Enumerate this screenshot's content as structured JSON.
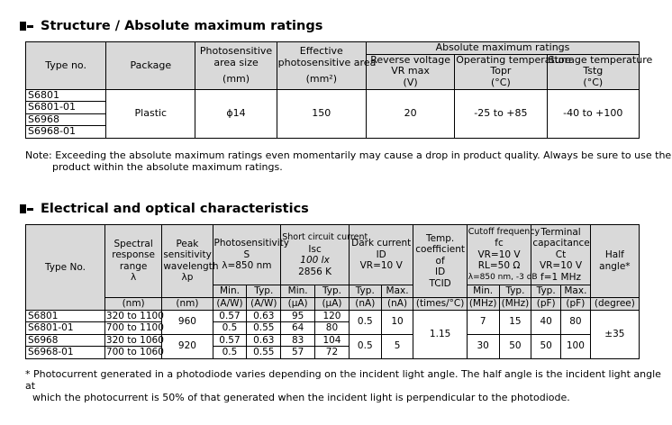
{
  "s1": {
    "title": "Structure / Absolute maximum ratings",
    "headers": {
      "type_no": "Type no.",
      "package": "Package",
      "area_l1": "Photosensitive",
      "area_l2": "area size",
      "area_unit": "(mm)",
      "eff_l1": "Effective",
      "eff_l2": "photosensitive area",
      "eff_unit": "(mm²)",
      "abs_max": "Absolute maximum ratings",
      "rev_l1": "Reverse voltage",
      "rev_l2": "VR max",
      "rev_unit": "(V)",
      "op_l1": "Operating temperature",
      "op_l2": "Topr",
      "op_unit": "(°C)",
      "st_l1": "Storage temperature",
      "st_l2": "Tstg",
      "st_unit": "(°C)"
    },
    "types": [
      "S6801",
      "S6801-01",
      "S6968",
      "S6968-01"
    ],
    "package": "Plastic",
    "area": "ϕ14",
    "effective_area": "150",
    "reverse_voltage": "20",
    "operating_temp": "-25 to +85",
    "storage_temp": "-40 to +100",
    "note_l1": "Note: Exceeding the absolute maximum ratings even momentarily may cause a drop in product quality. Always be sure to use the",
    "note_l2": "product within the absolute maximum ratings."
  },
  "s2": {
    "title": "Electrical and optical characteristics",
    "headers": {
      "type_no": "Type No.",
      "spec_l1": "Spectral",
      "spec_l2": "response",
      "spec_l3": "range",
      "spec_l4": "λ",
      "spec_unit": "(nm)",
      "peak_l1": "Peak",
      "peak_l2": "sensitivity",
      "peak_l3": "wavelength",
      "peak_l4": "λp",
      "peak_unit": "(nm)",
      "ps_l1": "Photosensitivity",
      "ps_l2": "S",
      "ps_l3": "λ=850 nm",
      "sc_l1": "Short circuit current",
      "sc_l2": "Isc",
      "sc_l3": "100 lx",
      "sc_l4": "2856 K",
      "dark_l1": "Dark current",
      "dark_l2": "ID",
      "dark_l3": "VR=10 V",
      "temp_l1": "Temp.",
      "temp_l2": "coefficient",
      "temp_l3": "of",
      "temp_l4": "ID",
      "temp_l5": "TCID",
      "temp_unit": "(times/°C)",
      "cut_l1": "Cutoff frequency",
      "cut_l2": "fc",
      "cut_l3": "VR=10 V",
      "cut_l4": "RL=50 Ω",
      "cut_l5": "λ=850 nm, -3 dB",
      "term_l1": "Terminal",
      "term_l2": "capacitance",
      "term_l3": "Ct",
      "term_l4": "VR=10 V",
      "term_l5": "f=1 MHz",
      "half_l1": "Half",
      "half_l2": "angle*",
      "half_unit": "(degree)",
      "min": "Min.",
      "typ": "Typ.",
      "max": "Max.",
      "u_aw": "(A/W)",
      "u_ua": "(μA)",
      "u_na": "(nA)",
      "u_mhz": "(MHz)",
      "u_pf": "(pF)"
    },
    "rows": [
      {
        "type": "S6801",
        "range": "320 to 1100",
        "ps_min": "0.57",
        "ps_typ": "0.63",
        "sc_min": "95",
        "sc_typ": "120"
      },
      {
        "type": "S6801-01",
        "range": "700 to 1100",
        "ps_min": "0.5",
        "ps_typ": "0.55",
        "sc_min": "64",
        "sc_typ": "80"
      },
      {
        "type": "S6968",
        "range": "320 to 1060",
        "ps_min": "0.57",
        "ps_typ": "0.63",
        "sc_min": "83",
        "sc_typ": "104"
      },
      {
        "type": "S6968-01",
        "range": "700 to 1060",
        "ps_min": "0.5",
        "ps_typ": "0.55",
        "sc_min": "57",
        "sc_typ": "72"
      }
    ],
    "groups": [
      {
        "peak": "960",
        "dark_typ": "0.5",
        "dark_max": "10",
        "cut_min": "7",
        "cut_typ": "15",
        "ct_typ": "40",
        "ct_max": "80"
      },
      {
        "peak": "920",
        "dark_typ": "0.5",
        "dark_max": "5",
        "cut_min": "30",
        "cut_typ": "50",
        "ct_typ": "50",
        "ct_max": "100"
      }
    ],
    "temp_coef": "1.15",
    "half_angle": "±35",
    "note_l1": "* Photocurrent generated in a photodiode varies depending on the incident light angle. The half angle is the incident light angle at",
    "note_l2": "which the photocurrent is 50% of that generated when the incident light is perpendicular to the photodiode."
  }
}
